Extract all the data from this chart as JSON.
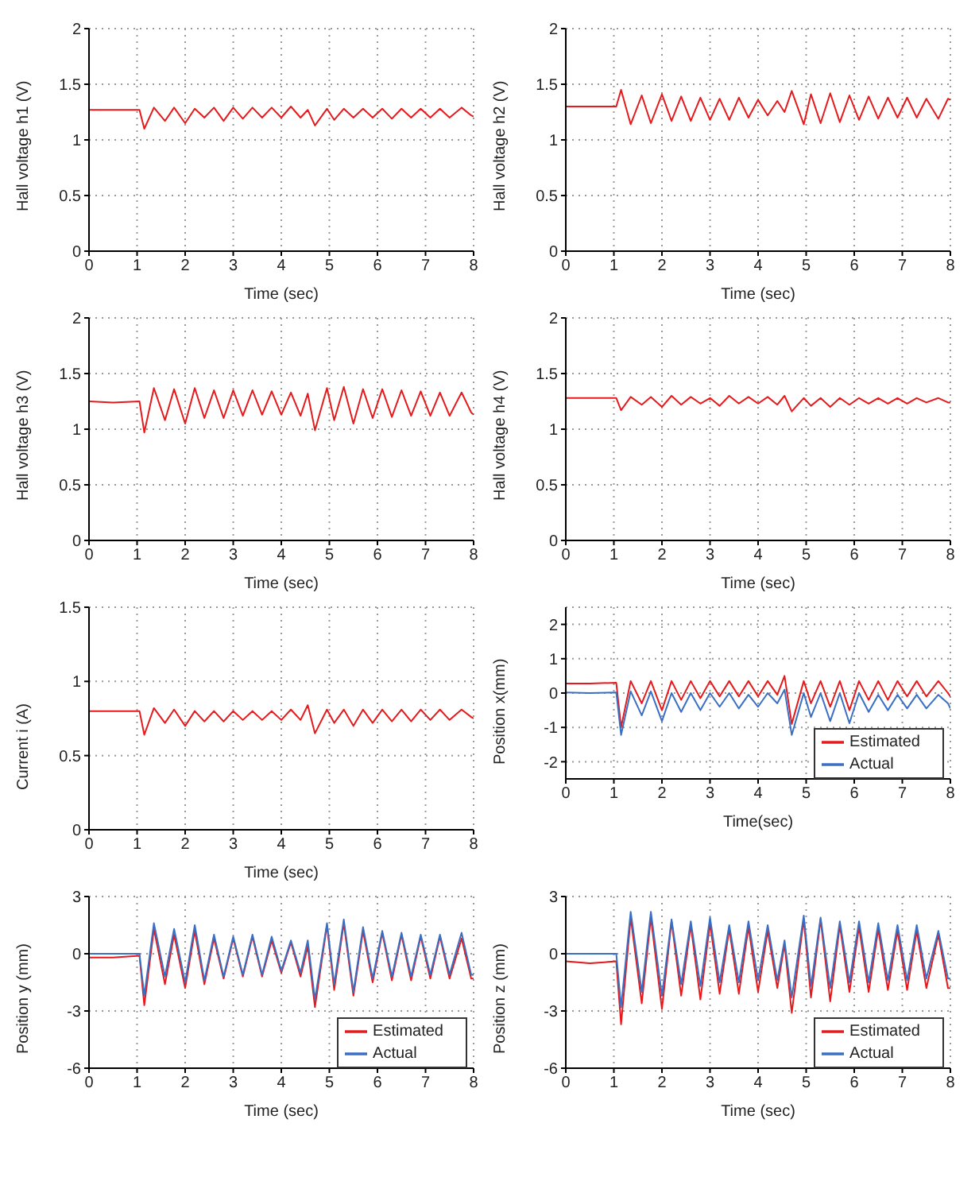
{
  "chart_data": [
    {
      "type": "line",
      "xlabel": "Time (sec)",
      "ylabel": "Hall voltage h1 (V)",
      "xlim": [
        0,
        8
      ],
      "xticks": [
        0,
        1,
        2,
        3,
        4,
        5,
        6,
        7,
        8
      ],
      "ylim": [
        0,
        2
      ],
      "yticks": [
        0,
        0.5,
        1,
        1.5,
        2
      ],
      "grid": true,
      "x": [
        0,
        0.5,
        1.05,
        1.15,
        1.35,
        1.58,
        1.77,
        2.0,
        2.2,
        2.4,
        2.6,
        2.8,
        3.0,
        3.2,
        3.4,
        3.6,
        3.8,
        4.0,
        4.2,
        4.4,
        4.55,
        4.7,
        4.95,
        5.1,
        5.3,
        5.5,
        5.7,
        5.9,
        6.1,
        6.3,
        6.5,
        6.7,
        6.9,
        7.1,
        7.3,
        7.5,
        7.75,
        7.95,
        8.0
      ],
      "series": [
        {
          "color": "#e41a1c",
          "values": [
            1.27,
            1.27,
            1.27,
            1.1,
            1.29,
            1.17,
            1.29,
            1.15,
            1.28,
            1.2,
            1.29,
            1.17,
            1.29,
            1.19,
            1.29,
            1.2,
            1.29,
            1.2,
            1.3,
            1.2,
            1.27,
            1.13,
            1.28,
            1.18,
            1.28,
            1.2,
            1.28,
            1.2,
            1.28,
            1.19,
            1.28,
            1.2,
            1.28,
            1.2,
            1.28,
            1.2,
            1.29,
            1.22,
            1.21
          ]
        }
      ]
    },
    {
      "type": "line",
      "xlabel": "Time (sec)",
      "ylabel": "Hall voltage h2 (V)",
      "xlim": [
        0,
        8
      ],
      "xticks": [
        0,
        1,
        2,
        3,
        4,
        5,
        6,
        7,
        8
      ],
      "ylim": [
        0,
        2
      ],
      "yticks": [
        0,
        0.5,
        1,
        1.5,
        2
      ],
      "grid": true,
      "x": [
        0,
        0.5,
        1.05,
        1.15,
        1.35,
        1.58,
        1.77,
        2.0,
        2.2,
        2.4,
        2.6,
        2.8,
        3.0,
        3.2,
        3.4,
        3.6,
        3.8,
        4.0,
        4.2,
        4.4,
        4.55,
        4.7,
        4.95,
        5.1,
        5.3,
        5.5,
        5.7,
        5.9,
        6.1,
        6.3,
        6.5,
        6.7,
        6.9,
        7.1,
        7.3,
        7.5,
        7.75,
        7.95,
        8.0
      ],
      "series": [
        {
          "color": "#e41a1c",
          "values": [
            1.3,
            1.3,
            1.3,
            1.45,
            1.14,
            1.4,
            1.15,
            1.41,
            1.17,
            1.39,
            1.17,
            1.38,
            1.18,
            1.37,
            1.18,
            1.38,
            1.2,
            1.36,
            1.22,
            1.35,
            1.25,
            1.44,
            1.14,
            1.41,
            1.15,
            1.42,
            1.16,
            1.4,
            1.18,
            1.39,
            1.19,
            1.38,
            1.2,
            1.38,
            1.2,
            1.37,
            1.19,
            1.37,
            1.36
          ]
        }
      ]
    },
    {
      "type": "line",
      "xlabel": "Time (sec)",
      "ylabel": "Hall voltage h3 (V)",
      "xlim": [
        0,
        8
      ],
      "xticks": [
        0,
        1,
        2,
        3,
        4,
        5,
        6,
        7,
        8
      ],
      "ylim": [
        0,
        2
      ],
      "yticks": [
        0,
        0.5,
        1,
        1.5,
        2
      ],
      "grid": true,
      "x": [
        0,
        0.5,
        1.05,
        1.15,
        1.35,
        1.58,
        1.77,
        2.0,
        2.2,
        2.4,
        2.6,
        2.8,
        3.0,
        3.2,
        3.4,
        3.6,
        3.8,
        4.0,
        4.2,
        4.4,
        4.55,
        4.7,
        4.95,
        5.1,
        5.3,
        5.5,
        5.7,
        5.9,
        6.1,
        6.3,
        6.5,
        6.7,
        6.9,
        7.1,
        7.3,
        7.5,
        7.75,
        7.95,
        8.0
      ],
      "series": [
        {
          "color": "#e41a1c",
          "values": [
            1.25,
            1.24,
            1.25,
            0.97,
            1.37,
            1.08,
            1.36,
            1.05,
            1.37,
            1.1,
            1.35,
            1.1,
            1.35,
            1.12,
            1.35,
            1.13,
            1.34,
            1.13,
            1.33,
            1.12,
            1.32,
            0.99,
            1.37,
            1.08,
            1.38,
            1.05,
            1.36,
            1.1,
            1.36,
            1.11,
            1.35,
            1.12,
            1.34,
            1.12,
            1.33,
            1.12,
            1.33,
            1.15,
            1.13
          ]
        }
      ]
    },
    {
      "type": "line",
      "xlabel": "Time (sec)",
      "ylabel": "Hall voltage h4 (V)",
      "xlim": [
        0,
        8
      ],
      "xticks": [
        0,
        1,
        2,
        3,
        4,
        5,
        6,
        7,
        8
      ],
      "ylim": [
        0,
        2
      ],
      "yticks": [
        0,
        0.5,
        1,
        1.5,
        2
      ],
      "grid": true,
      "x": [
        0,
        0.5,
        1.05,
        1.15,
        1.35,
        1.58,
        1.77,
        2.0,
        2.2,
        2.4,
        2.6,
        2.8,
        3.0,
        3.2,
        3.4,
        3.6,
        3.8,
        4.0,
        4.2,
        4.4,
        4.55,
        4.7,
        4.95,
        5.1,
        5.3,
        5.5,
        5.7,
        5.9,
        6.1,
        6.3,
        6.5,
        6.7,
        6.9,
        7.1,
        7.3,
        7.5,
        7.75,
        7.95,
        8.0
      ],
      "series": [
        {
          "color": "#e41a1c",
          "values": [
            1.28,
            1.28,
            1.28,
            1.17,
            1.29,
            1.22,
            1.29,
            1.2,
            1.3,
            1.22,
            1.29,
            1.23,
            1.28,
            1.21,
            1.3,
            1.23,
            1.29,
            1.23,
            1.29,
            1.22,
            1.3,
            1.16,
            1.28,
            1.21,
            1.28,
            1.2,
            1.28,
            1.22,
            1.28,
            1.23,
            1.28,
            1.23,
            1.28,
            1.23,
            1.28,
            1.24,
            1.28,
            1.24,
            1.24
          ]
        }
      ]
    },
    {
      "type": "line",
      "xlabel": "Time (sec)",
      "ylabel": "Current i (A)",
      "xlim": [
        0,
        8
      ],
      "xticks": [
        0,
        1,
        2,
        3,
        4,
        5,
        6,
        7,
        8
      ],
      "ylim": [
        0,
        1.5
      ],
      "yticks": [
        0,
        0.5,
        1,
        1.5
      ],
      "grid": true,
      "x": [
        0,
        0.5,
        1.05,
        1.15,
        1.35,
        1.58,
        1.77,
        2.0,
        2.2,
        2.4,
        2.6,
        2.8,
        3.0,
        3.2,
        3.4,
        3.6,
        3.8,
        4.0,
        4.2,
        4.4,
        4.55,
        4.7,
        4.95,
        5.1,
        5.3,
        5.5,
        5.7,
        5.9,
        6.1,
        6.3,
        6.5,
        6.7,
        6.9,
        7.1,
        7.3,
        7.5,
        7.75,
        7.95,
        8.0
      ],
      "series": [
        {
          "color": "#e41a1c",
          "values": [
            0.8,
            0.8,
            0.8,
            0.64,
            0.82,
            0.72,
            0.81,
            0.7,
            0.8,
            0.73,
            0.8,
            0.73,
            0.8,
            0.74,
            0.8,
            0.74,
            0.8,
            0.74,
            0.81,
            0.74,
            0.84,
            0.65,
            0.81,
            0.72,
            0.81,
            0.7,
            0.81,
            0.72,
            0.81,
            0.73,
            0.81,
            0.73,
            0.81,
            0.74,
            0.81,
            0.74,
            0.81,
            0.76,
            0.75
          ]
        }
      ]
    },
    {
      "type": "line",
      "xlabel": "Time(sec)",
      "ylabel": "Position x(mm)",
      "xlim": [
        0,
        8
      ],
      "xticks": [
        0,
        1,
        2,
        3,
        4,
        5,
        6,
        7,
        8
      ],
      "ylim": [
        -2.5,
        2.5
      ],
      "yticks": [
        -2,
        -1,
        0,
        1,
        2
      ],
      "grid": true,
      "legend": "bottom right",
      "x": [
        0,
        0.5,
        1.05,
        1.15,
        1.35,
        1.58,
        1.77,
        2.0,
        2.2,
        2.4,
        2.6,
        2.8,
        3.0,
        3.2,
        3.4,
        3.6,
        3.8,
        4.0,
        4.2,
        4.4,
        4.55,
        4.7,
        4.95,
        5.1,
        5.3,
        5.5,
        5.7,
        5.9,
        6.1,
        6.3,
        6.5,
        6.7,
        6.9,
        7.1,
        7.3,
        7.5,
        7.75,
        7.95,
        8.0
      ],
      "series": [
        {
          "name": "Estimated",
          "color": "#e41a1c",
          "values": [
            0.28,
            0.28,
            0.3,
            -1.0,
            0.35,
            -0.3,
            0.35,
            -0.5,
            0.35,
            -0.2,
            0.35,
            -0.15,
            0.35,
            -0.1,
            0.35,
            -0.1,
            0.35,
            -0.1,
            0.35,
            -0.05,
            0.5,
            -0.9,
            0.35,
            -0.3,
            0.35,
            -0.4,
            0.35,
            -0.5,
            0.35,
            -0.2,
            0.35,
            -0.2,
            0.35,
            -0.1,
            0.35,
            -0.1,
            0.35,
            0.0,
            -0.1
          ]
        },
        {
          "name": "Actual",
          "color": "#3a6fc4",
          "values": [
            0.02,
            0.0,
            0.02,
            -1.22,
            0.05,
            -0.65,
            0.05,
            -0.82,
            0.0,
            -0.55,
            0.0,
            -0.5,
            0.0,
            -0.4,
            0.0,
            -0.45,
            -0.05,
            -0.4,
            0.0,
            -0.3,
            0.1,
            -1.22,
            0.0,
            -0.7,
            0.0,
            -0.82,
            0.0,
            -0.88,
            0.0,
            -0.55,
            -0.05,
            -0.5,
            -0.05,
            -0.45,
            -0.05,
            -0.45,
            -0.05,
            -0.3,
            -0.45
          ]
        }
      ]
    },
    {
      "type": "line",
      "xlabel": "Time (sec)",
      "ylabel": "Position y (mm)",
      "xlim": [
        0,
        8
      ],
      "xticks": [
        0,
        1,
        2,
        3,
        4,
        5,
        6,
        7,
        8
      ],
      "ylim": [
        -6,
        3
      ],
      "yticks": [
        -6,
        -3,
        0,
        3
      ],
      "grid": true,
      "legend": "bottom right",
      "x": [
        0,
        0.5,
        1.05,
        1.15,
        1.35,
        1.58,
        1.77,
        2.0,
        2.2,
        2.4,
        2.6,
        2.8,
        3.0,
        3.2,
        3.4,
        3.6,
        3.8,
        4.0,
        4.2,
        4.4,
        4.55,
        4.7,
        4.95,
        5.1,
        5.3,
        5.5,
        5.7,
        5.9,
        6.1,
        6.3,
        6.5,
        6.7,
        6.9,
        7.1,
        7.3,
        7.5,
        7.75,
        7.95,
        8.0
      ],
      "series": [
        {
          "name": "Estimated",
          "color": "#e41a1c",
          "values": [
            -0.2,
            -0.2,
            -0.1,
            -2.7,
            1.3,
            -1.6,
            1.0,
            -1.8,
            1.2,
            -1.6,
            0.8,
            -1.3,
            0.8,
            -1.2,
            0.9,
            -1.2,
            0.7,
            -1.0,
            0.6,
            -1.2,
            0.4,
            -2.8,
            1.5,
            -1.9,
            1.6,
            -2.2,
            1.2,
            -1.5,
            1.1,
            -1.4,
            1.0,
            -1.4,
            0.9,
            -1.3,
            0.9,
            -1.3,
            0.8,
            -1.3,
            -1.3
          ]
        },
        {
          "name": "Actual",
          "color": "#3a6fc4",
          "values": [
            0.0,
            0.0,
            0.0,
            -2.2,
            1.6,
            -1.2,
            1.3,
            -1.5,
            1.5,
            -1.4,
            1.0,
            -1.2,
            0.9,
            -1.1,
            1.0,
            -1.1,
            0.9,
            -0.9,
            0.7,
            -1.0,
            0.7,
            -2.4,
            1.6,
            -1.6,
            1.8,
            -2.0,
            1.4,
            -1.3,
            1.2,
            -1.2,
            1.1,
            -1.2,
            1.0,
            -1.1,
            1.0,
            -1.1,
            1.1,
            -1.1,
            -1.1
          ]
        }
      ]
    },
    {
      "type": "line",
      "xlabel": "Time (sec)",
      "ylabel": "Position z (mm)",
      "xlim": [
        0,
        8
      ],
      "xticks": [
        0,
        1,
        2,
        3,
        4,
        5,
        6,
        7,
        8
      ],
      "ylim": [
        -6,
        3
      ],
      "yticks": [
        -6,
        -3,
        0,
        3
      ],
      "grid": true,
      "legend": "bottom right",
      "x": [
        0,
        0.5,
        1.05,
        1.15,
        1.35,
        1.58,
        1.77,
        2.0,
        2.2,
        2.4,
        2.6,
        2.8,
        3.0,
        3.2,
        3.4,
        3.6,
        3.8,
        4.0,
        4.2,
        4.4,
        4.55,
        4.7,
        4.95,
        5.1,
        5.3,
        5.5,
        5.7,
        5.9,
        6.1,
        6.3,
        6.5,
        6.7,
        6.9,
        7.1,
        7.3,
        7.5,
        7.75,
        7.95,
        8.0
      ],
      "series": [
        {
          "name": "Estimated",
          "color": "#e41a1c",
          "values": [
            -0.4,
            -0.5,
            -0.4,
            -3.7,
            1.9,
            -2.6,
            1.9,
            -2.9,
            1.7,
            -2.2,
            1.5,
            -2.4,
            1.6,
            -2.1,
            1.3,
            -2.1,
            1.4,
            -2.0,
            1.2,
            -1.8,
            0.5,
            -3.1,
            1.8,
            -2.3,
            1.8,
            -2.5,
            1.5,
            -2.0,
            1.4,
            -2.0,
            1.3,
            -1.9,
            1.2,
            -1.9,
            1.2,
            -1.8,
            1.0,
            -1.8,
            -1.8
          ]
        },
        {
          "name": "Actual",
          "color": "#3a6fc4",
          "values": [
            0.0,
            0.0,
            0.0,
            -2.8,
            2.2,
            -2.0,
            2.2,
            -2.2,
            1.8,
            -1.6,
            1.7,
            -1.7,
            1.9,
            -1.5,
            1.5,
            -1.5,
            1.7,
            -1.4,
            1.5,
            -1.4,
            0.7,
            -2.3,
            2.0,
            -1.7,
            1.9,
            -1.8,
            1.7,
            -1.5,
            1.7,
            -1.5,
            1.6,
            -1.4,
            1.5,
            -1.4,
            1.5,
            -1.3,
            1.2,
            -1.3,
            -1.3
          ]
        }
      ]
    }
  ]
}
